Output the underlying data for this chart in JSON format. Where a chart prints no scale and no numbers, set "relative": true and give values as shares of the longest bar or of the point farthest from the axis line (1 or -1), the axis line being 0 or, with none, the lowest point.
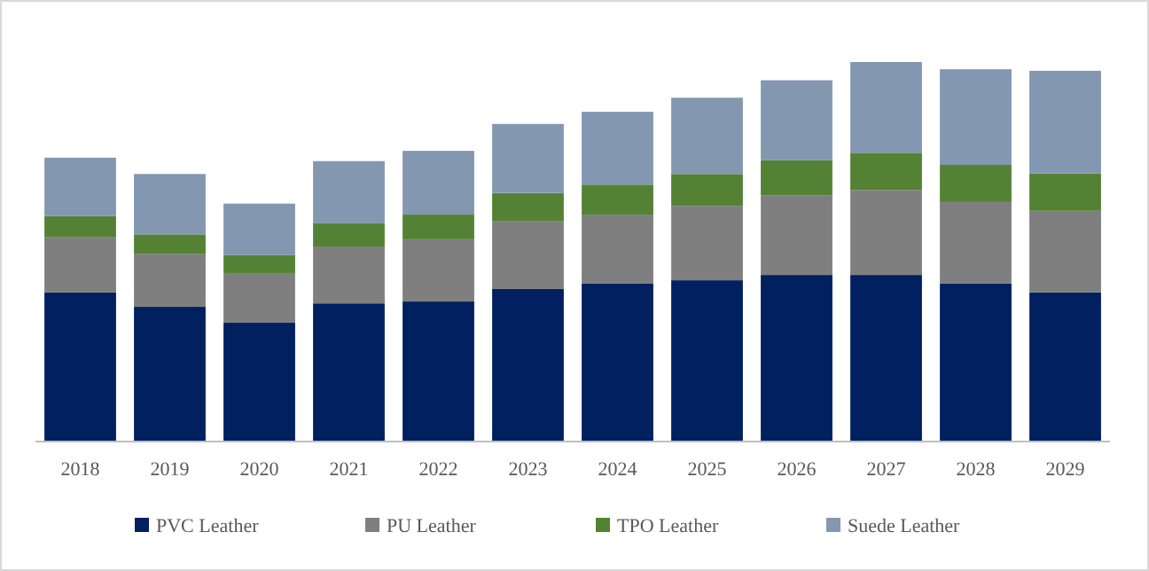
{
  "chart_data": {
    "type": "bar",
    "stacked": true,
    "relative": true,
    "legend": "bottom",
    "grid": false,
    "categories": [
      "2018",
      "2019",
      "2020",
      "2021",
      "2022",
      "2023",
      "2024",
      "2025",
      "2026",
      "2027",
      "2028",
      "2029"
    ],
    "series": [
      {
        "name": "PVC Leather",
        "color": "#002060",
        "values": [
          0.393,
          0.355,
          0.313,
          0.364,
          0.369,
          0.402,
          0.416,
          0.425,
          0.439,
          0.439,
          0.416,
          0.393
        ]
      },
      {
        "name": "PU Leather",
        "color": "#7f7f7f",
        "values": [
          0.145,
          0.14,
          0.131,
          0.15,
          0.164,
          0.178,
          0.182,
          0.196,
          0.21,
          0.224,
          0.215,
          0.215
        ]
      },
      {
        "name": "TPO Leather",
        "color": "#548235",
        "values": [
          0.056,
          0.051,
          0.047,
          0.061,
          0.065,
          0.075,
          0.079,
          0.084,
          0.093,
          0.098,
          0.098,
          0.098
        ]
      },
      {
        "name": "Suede Leather",
        "color": "#8497b0",
        "values": [
          0.154,
          0.159,
          0.136,
          0.164,
          0.168,
          0.182,
          0.192,
          0.201,
          0.21,
          0.239,
          0.252,
          0.271
        ]
      }
    ]
  }
}
